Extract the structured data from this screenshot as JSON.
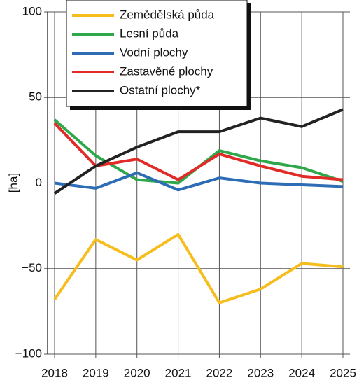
{
  "chart_data": {
    "type": "line",
    "y_label": "[ha]",
    "categories": [
      "2018",
      "2019",
      "2020",
      "2021",
      "2022",
      "2023",
      "2024",
      "2025"
    ],
    "series": [
      {
        "name": "Zemědělská půda",
        "color": "#f5be1e",
        "values": [
          -68,
          -33,
          -45,
          -30,
          -70,
          -62,
          -47,
          -49
        ]
      },
      {
        "name": "Lesní půda",
        "color": "#2ea84a",
        "values": [
          37,
          16,
          2,
          0,
          19,
          13,
          9,
          1
        ]
      },
      {
        "name": "Vodní plochy",
        "color": "#2d6db5",
        "values": [
          0,
          -3,
          6,
          -4,
          3,
          0,
          -1,
          -2
        ]
      },
      {
        "name": "Zastavěné plochy",
        "color": "#e02b27",
        "values": [
          35,
          10,
          14,
          2,
          17,
          10,
          4,
          2
        ]
      },
      {
        "name": "Ostatní plochy*",
        "color": "#222222",
        "values": [
          -6,
          10,
          21,
          30,
          30,
          38,
          33,
          43
        ]
      }
    ],
    "ylim": [
      -100,
      100
    ],
    "yticks": [
      {
        "value": -100,
        "label": "−100"
      },
      {
        "value": -50,
        "label": "−50"
      },
      0,
      50,
      100
    ],
    "grid": true,
    "legend": "upper left"
  }
}
